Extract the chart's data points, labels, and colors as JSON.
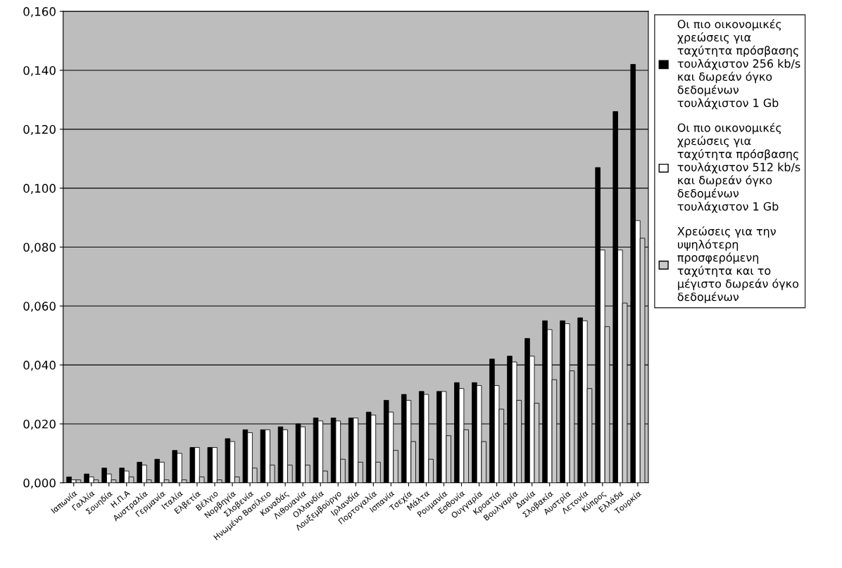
{
  "chart_data": {
    "type": "bar",
    "categories": [
      "Ιαπωνία",
      "Γαλλία",
      "Σουηδία",
      "Η.Π.Α",
      "Αυστραλία",
      "Γερμανία",
      "Ιταλία",
      "Ελβετία",
      "Βέλγιο",
      "Νορβηγία",
      "Σλοβενία",
      "Ηνωμένο Βασίλειο",
      "Καναδάς",
      "Λιθουανία",
      "Ολλανδία",
      "Λουξεμβούργο",
      "Ιρλανδία",
      "Πορτογαλία",
      "Ισπανία",
      "Τσεχία",
      "Μάλτα",
      "Ρουμανία",
      "Εσθονία",
      "Ουγγαρία",
      "Κροατία",
      "Βουλγαρία",
      "Δανία",
      "Σλοβακία",
      "Αυστρία",
      "Λετονία",
      "Κύπρος",
      "Ελλάδα",
      "Τουρκία"
    ],
    "series": [
      {
        "name": "Οι πιο οικονομικές χρεώσεις για ταχύτητα πρόσβασης τουλάχιστον 256 kb/s και δωρεάν όγκο δεδομένων τουλάχιστον 1 Gb",
        "color": "#000000",
        "values": [
          0.002,
          0.003,
          0.005,
          0.005,
          0.007,
          0.008,
          0.011,
          0.012,
          0.012,
          0.015,
          0.018,
          0.018,
          0.019,
          0.02,
          0.022,
          0.022,
          0.022,
          0.024,
          0.028,
          0.03,
          0.031,
          0.031,
          0.034,
          0.034,
          0.042,
          0.043,
          0.049,
          0.055,
          0.055,
          0.056,
          0.107,
          0.126,
          0.142
        ]
      },
      {
        "name": "Οι πιο οικονομικές χρεώσεις για ταχύτητα πρόσβασης τουλάχιστον 512 kb/s και δωρεάν όγκο δεδομένων τουλάχιστον 1 Gb",
        "color": "#ffffff",
        "values": [
          0.001,
          0.002,
          0.003,
          0.004,
          0.006,
          0.007,
          0.01,
          0.012,
          0.012,
          0.014,
          0.017,
          0.018,
          0.018,
          0.019,
          0.021,
          0.021,
          0.022,
          0.023,
          0.024,
          0.028,
          0.03,
          0.031,
          0.032,
          0.033,
          0.033,
          0.041,
          0.043,
          0.052,
          0.054,
          0.055,
          0.079,
          0.079,
          0.089
        ]
      },
      {
        "name": "Χρεώσεις για την υψηλότερη προσφερόμενη ταχύτητα και το μέγιστο δωρεάν όγκο δεδομένων",
        "color": "#c8c8c8",
        "values": [
          0.001,
          0.001,
          0.001,
          0.002,
          0.001,
          0.001,
          0.001,
          0.002,
          0.001,
          0.002,
          0.005,
          0.006,
          0.006,
          0.006,
          0.004,
          0.008,
          0.007,
          0.007,
          0.011,
          0.014,
          0.008,
          0.016,
          0.018,
          0.014,
          0.025,
          0.028,
          0.027,
          0.035,
          0.038,
          0.032,
          0.053,
          0.061,
          0.083
        ]
      }
    ],
    "ylim": [
      0,
      0.16
    ],
    "yticks": [
      {
        "value": 0,
        "label": "0,000"
      },
      {
        "value": 0.02,
        "label": "0,020"
      },
      {
        "value": 0.04,
        "label": "0,040"
      },
      {
        "value": 0.06,
        "label": "0,060"
      },
      {
        "value": 0.08,
        "label": "0,080"
      },
      {
        "value": 0.1,
        "label": "0,100"
      },
      {
        "value": 0.12,
        "label": "0,120"
      },
      {
        "value": 0.14,
        "label": "0,140"
      },
      {
        "value": 0.16,
        "label": "0,160"
      }
    ],
    "grid": "y",
    "legend": "right"
  }
}
